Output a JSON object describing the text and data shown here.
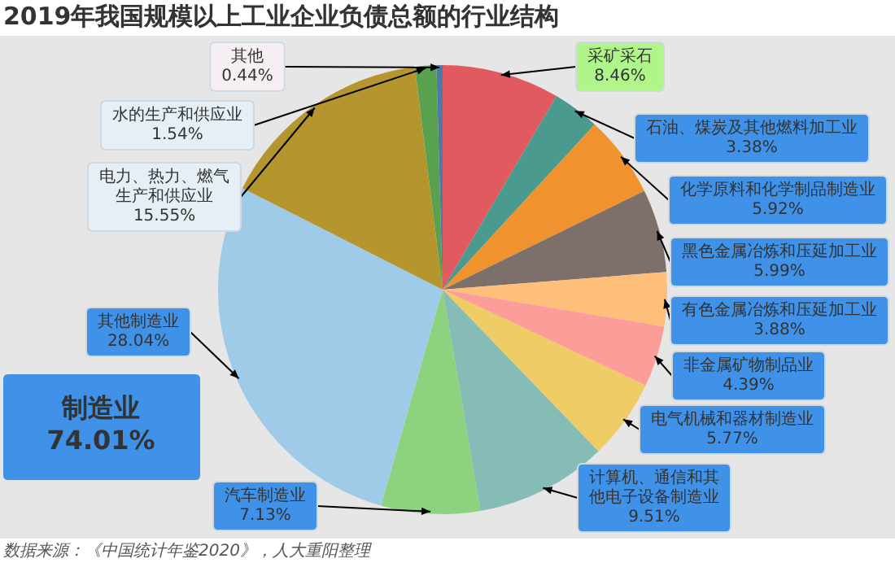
{
  "chart_data": {
    "type": "pie",
    "title": "2019年我国规模以上工业企业负债总额的行业结构",
    "categories": [
      "采矿采石",
      "石油、煤炭及其他燃料加工业",
      "化学原料和化学制品制造业",
      "黑色金属冶炼和压延加工业",
      "有色金属冶炼和压延加工业",
      "非金属矿物制品业",
      "电气机械和器材制造业",
      "计算机、通信和其他电子设备制造业",
      "汽车制造业",
      "其他制造业",
      "电力、热力、燃气生产和供应业",
      "水的生产和供应业",
      "其他"
    ],
    "values": [
      8.46,
      3.38,
      5.92,
      5.99,
      3.88,
      4.39,
      5.77,
      9.51,
      7.13,
      28.04,
      15.55,
      1.54,
      0.44
    ],
    "colors": [
      "#e05a60",
      "#4a9a90",
      "#f0922e",
      "#7d706a",
      "#fdbf7a",
      "#fc9d9a",
      "#f0cc66",
      "#86bcb6",
      "#8dd37f",
      "#a0cbe8",
      "#b5962e",
      "#59a14f",
      "#4e79a7"
    ],
    "value_labels": [
      "8.46%",
      "3.38%",
      "5.92%",
      "5.99%",
      "3.88%",
      "4.39%",
      "5.77%",
      "9.51%",
      "7.13%",
      "28.04%",
      "15.55%",
      "1.54%",
      "0.44%"
    ],
    "annotations": [
      "制造业\n74.01%",
      "数据来源：《中国统计年鉴2020》，人大重阳整理"
    ]
  }
}
